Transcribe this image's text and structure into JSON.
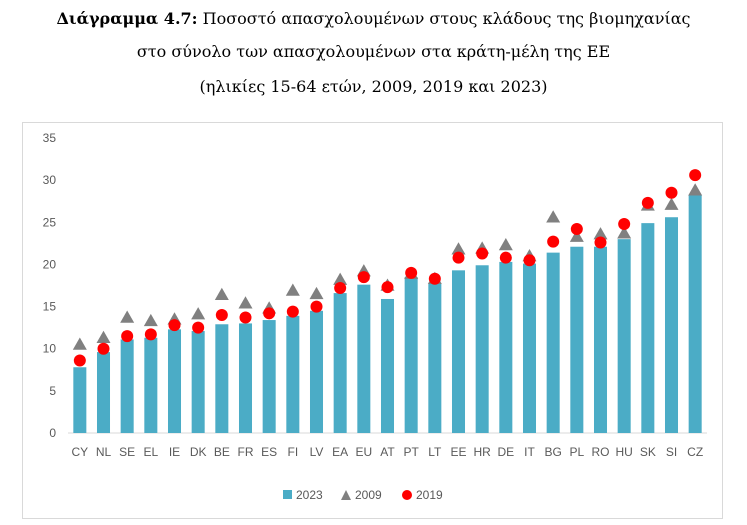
{
  "title": {
    "prefix": "Διάγραμμα 4.7:",
    "line1_rest": "Ποσοστό απασχολουμένων στους κλάδους της βιομηχανίας",
    "line2": "στο σύνολο των απασχολουμένων στα κράτη-μέλη της ΕΕ",
    "line3": "(ηλικίες 15-64 ετών, 2009, 2019 και 2023)"
  },
  "chart_data": {
    "type": "bar",
    "categories": [
      "CY",
      "NL",
      "SE",
      "EL",
      "IE",
      "DK",
      "BE",
      "FR",
      "ES",
      "FI",
      "LV",
      "EA",
      "EU",
      "AT",
      "PT",
      "LT",
      "EE",
      "HR",
      "DE",
      "IT",
      "BG",
      "PL",
      "RO",
      "HU",
      "SK",
      "SI",
      "CZ"
    ],
    "series": [
      {
        "name": "2023",
        "kind": "bar",
        "color": "#4bacc6",
        "values": [
          7.8,
          9.6,
          11.1,
          11.3,
          12.3,
          12.1,
          12.9,
          13.0,
          13.4,
          13.9,
          14.5,
          16.6,
          17.6,
          15.9,
          18.5,
          17.7,
          19.3,
          19.9,
          20.3,
          20.1,
          21.4,
          22.1,
          22.1,
          23.0,
          24.9,
          25.6,
          28.2
        ]
      },
      {
        "name": "2009",
        "kind": "triangle",
        "color": "#808080",
        "values": [
          10.5,
          11.3,
          13.7,
          13.3,
          13.5,
          14.1,
          16.4,
          15.4,
          14.8,
          16.9,
          16.5,
          18.2,
          19.2,
          17.5,
          18.9,
          18.3,
          21.8,
          21.9,
          22.3,
          21.0,
          25.6,
          23.3,
          23.6,
          23.7,
          27.0,
          27.1,
          28.8
        ]
      },
      {
        "name": "2019",
        "kind": "dot",
        "color": "#ff0000",
        "values": [
          8.6,
          10.0,
          11.5,
          11.7,
          12.8,
          12.5,
          14.0,
          13.7,
          14.2,
          14.4,
          15.0,
          17.2,
          18.5,
          17.3,
          19.0,
          18.3,
          20.8,
          21.3,
          20.8,
          20.5,
          22.7,
          24.2,
          22.6,
          24.8,
          27.3,
          28.5,
          30.6
        ]
      }
    ],
    "yticks": [
      "0",
      "5",
      "10",
      "15",
      "20",
      "25",
      "30",
      "35"
    ],
    "ylim": [
      0,
      35
    ],
    "grid": false,
    "legend_position": "bottom"
  }
}
